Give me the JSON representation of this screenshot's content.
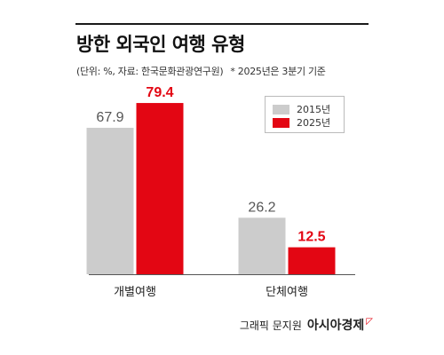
{
  "header": {
    "title": "방한 외국인 여행 유형",
    "source": "(단위: %, 자료: 한국문화관광연구원)",
    "note": "* 2025년은 3분기 기준"
  },
  "colors": {
    "series_2015": "#cccccc",
    "series_2025": "#e30613",
    "text_2015": "#555555",
    "text_2025": "#e30613",
    "axis": "#555555",
    "brand_mark": "#e30613"
  },
  "chart_data": {
    "type": "bar",
    "title": "방한 외국인 여행 유형",
    "categories": [
      "개별여행",
      "단체여행"
    ],
    "series": [
      {
        "name": "2015년",
        "values": [
          67.9,
          26.2
        ]
      },
      {
        "name": "2025년",
        "values": [
          79.4,
          12.5
        ]
      }
    ],
    "ylim": [
      0,
      100
    ],
    "grid": false,
    "legend": "top-right",
    "units": "%"
  },
  "footer": {
    "credit": "그래픽 문지원",
    "brand": "아시아경제",
    "brand_mark": "◸"
  }
}
